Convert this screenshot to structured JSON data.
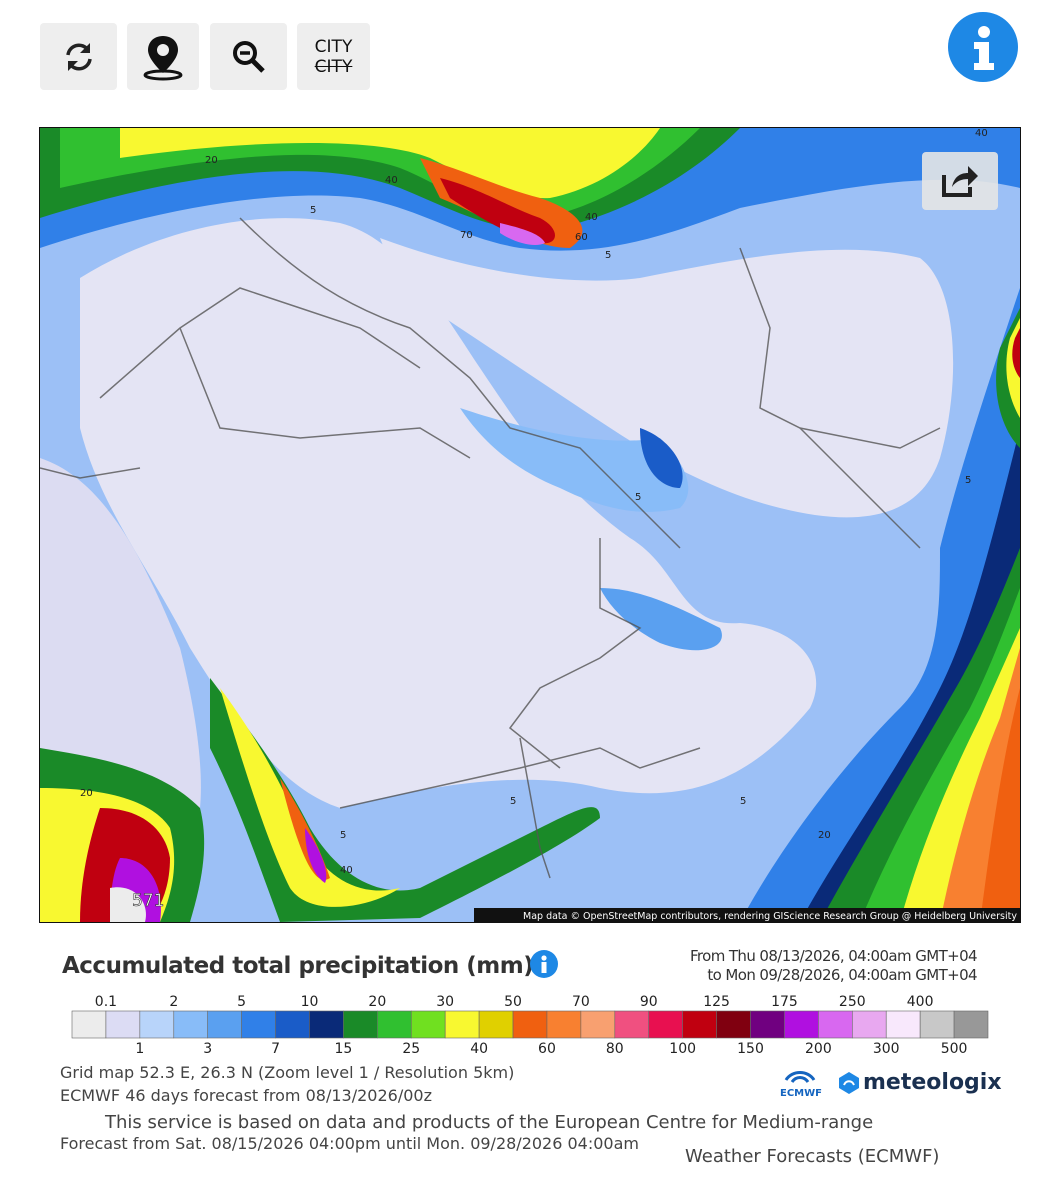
{
  "toolbar": {
    "city_label": "CITY",
    "city_label_struck": "CITY"
  },
  "map": {
    "contour_labels": [
      "20",
      "40",
      "70",
      "40",
      "60",
      "5",
      "5",
      "40",
      "5",
      "5",
      "5",
      "5",
      "20",
      "5",
      "40",
      "20",
      "571"
    ],
    "attribution": "Map data © OpenStreetMap contributors, rendering GIScience Research Group @ Heidelberg University"
  },
  "legend": {
    "title": "Accumulated total precipitation (mm)",
    "period_from": "From Thu 08/13/2026, 04:00am GMT+04",
    "period_to": "to Mon 09/28/2026, 04:00am GMT+04",
    "top_labels": [
      "0.1",
      "2",
      "5",
      "10",
      "20",
      "30",
      "50",
      "70",
      "90",
      "125",
      "175",
      "250",
      "400"
    ],
    "bottom_labels": [
      "1",
      "3",
      "7",
      "15",
      "25",
      "40",
      "60",
      "80",
      "100",
      "150",
      "200",
      "300",
      "500"
    ],
    "colors": [
      "#ececec",
      "#dcdcf4",
      "#b8d4fa",
      "#88bcf8",
      "#5aa0f0",
      "#3080e8",
      "#1a5cc8",
      "#0a2a78",
      "#1a8a28",
      "#30c030",
      "#70e020",
      "#f8f830",
      "#e0d000",
      "#f06010",
      "#f88030",
      "#f8a070",
      "#f05080",
      "#e81050",
      "#c00010",
      "#800010",
      "#700080",
      "#b010e0",
      "#d868f0",
      "#e8a8f0",
      "#f8e8fc",
      "#c8c8c8",
      "#989898"
    ]
  },
  "info": {
    "grid_map": "Grid map 52.3 E, 26.3 N (Zoom level 1 / Resolution 5km)",
    "model": "ECMWF 46 days forecast from 08/13/2026/00z",
    "forecast_range": "Forecast from Sat. 08/15/2026 04:00pm until Mon. 09/28/2026 04:00am",
    "service_line1": "This service is based on data and products of the European Centre for Medium-range",
    "service_line2": "Weather Forecasts (ECMWF)"
  },
  "logos": {
    "ecmwf": "ECMWF",
    "meteologix": "meteologix"
  }
}
